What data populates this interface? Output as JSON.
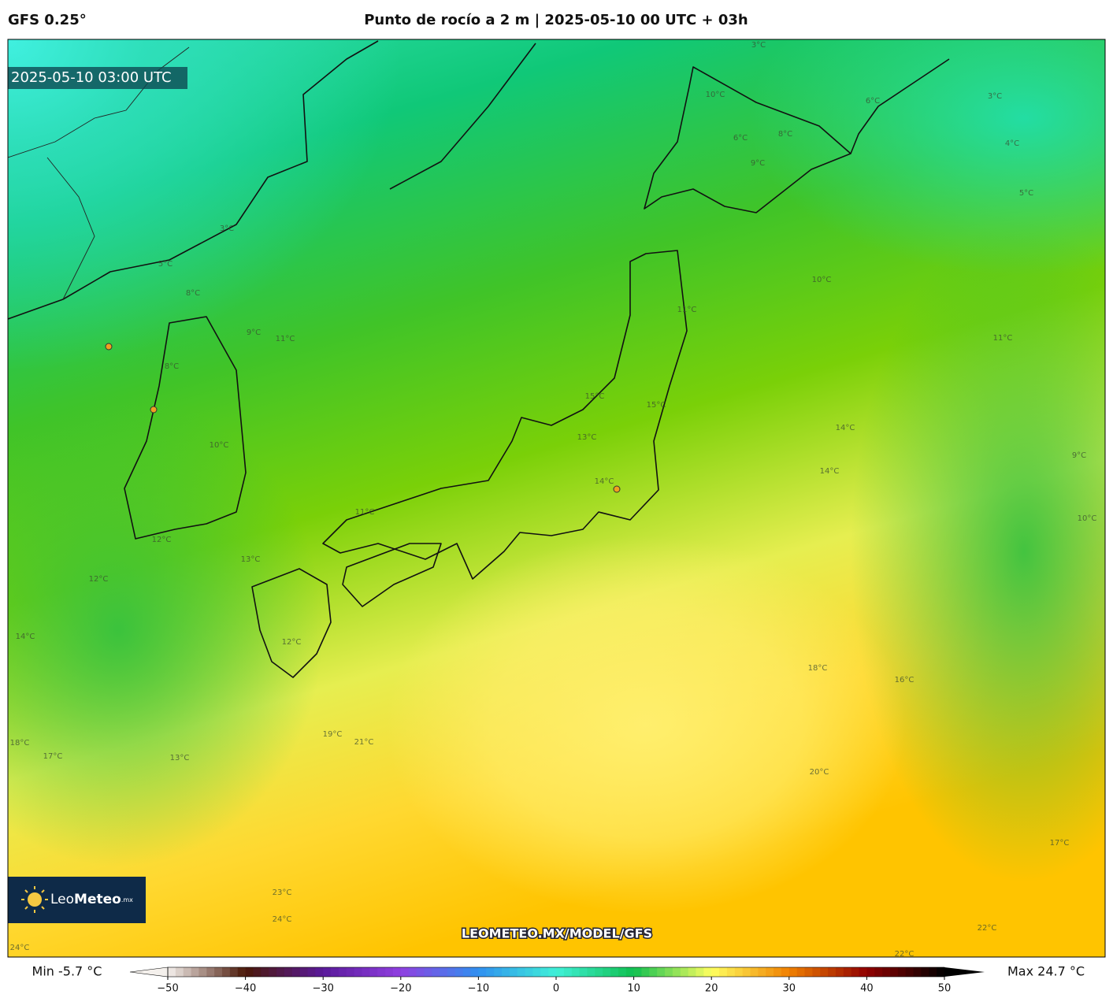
{
  "header": {
    "model": "GFS 0.25°",
    "title": "Punto de rocío a 2 m | 2025-05-10 00 UTC + 03h"
  },
  "map": {
    "timestamp": "2025-05-10 03:00 UTC",
    "watermark": "LEOMETEO.MX/MODEL/GFS",
    "logo": {
      "name": "Leo",
      "name_bold": "Meteo",
      "suffix": ".mx"
    },
    "contour_labels": [
      "3°C",
      "5°C",
      "8°C",
      "9°C",
      "11°C",
      "8°C",
      "10°C",
      "12°C",
      "12°C",
      "14°C",
      "13°C",
      "11°C",
      "12°C",
      "13°C",
      "17°C",
      "18°C",
      "19°C",
      "21°C",
      "23°C",
      "24°C",
      "24°C",
      "10°C",
      "11°C",
      "14°C",
      "14°C",
      "15°C",
      "15°C",
      "14°C",
      "13°C",
      "11°C",
      "18°C",
      "16°C",
      "20°C",
      "17°C",
      "22°C",
      "22°C",
      "9°C",
      "10°C",
      "4°C",
      "5°C",
      "3°C",
      "3°C",
      "6°C",
      "8°C",
      "9°C",
      "6°C",
      "10°C"
    ]
  },
  "colorbar": {
    "min_label": "Min -5.7 °C",
    "max_label": "Max 24.7 °C",
    "lim": [
      -50,
      50
    ],
    "ticks": [
      {
        "value": -50,
        "label": "−50"
      },
      {
        "value": -40,
        "label": "−40"
      },
      {
        "value": -30,
        "label": "−30"
      },
      {
        "value": -20,
        "label": "−20"
      },
      {
        "value": -10,
        "label": "−10"
      },
      0,
      10,
      20,
      30,
      40,
      50
    ],
    "colors": [
      "#f4f0ec",
      "#4a1808",
      "#5a1a9a",
      "#9040e0",
      "#3090f0",
      "#40f0d8",
      "#10c050",
      "#ffff60",
      "#f08000",
      "#900000",
      "#000000"
    ]
  }
}
